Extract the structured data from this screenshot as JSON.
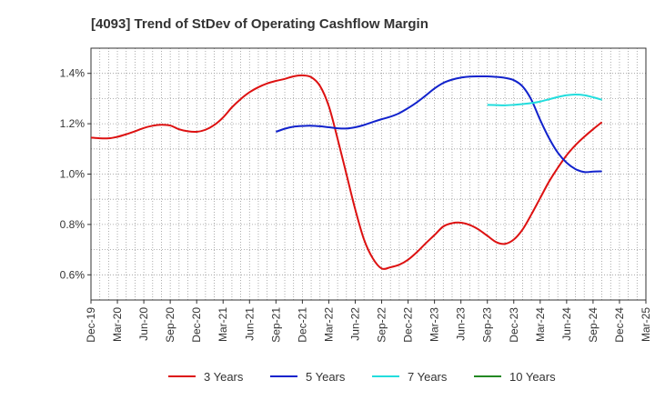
{
  "chart_data": {
    "type": "line",
    "title": "[4093]  Trend of StDev of Operating Cashflow Margin",
    "xlabel": "",
    "ylabel": "",
    "ylim": [
      0.5,
      1.5
    ],
    "yticks": [
      0.6,
      0.8,
      1.0,
      1.2,
      1.4
    ],
    "ytick_labels": [
      "0.6%",
      "0.8%",
      "1.0%",
      "1.2%",
      "1.4%"
    ],
    "x_tick_labels": [
      "Dec-19",
      "Mar-20",
      "Jun-20",
      "Sep-20",
      "Dec-20",
      "Mar-21",
      "Jun-21",
      "Sep-21",
      "Dec-21",
      "Mar-22",
      "Jun-22",
      "Sep-22",
      "Dec-22",
      "Mar-23",
      "Jun-23",
      "Sep-23",
      "Dec-23",
      "Mar-24",
      "Jun-24",
      "Sep-24",
      "Dec-24",
      "Mar-25"
    ],
    "grid": true,
    "legend_position": "bottom",
    "series": [
      {
        "name": "3 Years",
        "color": "#dd1111",
        "points": [
          [
            "Dec-19",
            1.145
          ],
          [
            "Jan-20",
            1.142
          ],
          [
            "Feb-20",
            1.142
          ],
          [
            "Mar-20",
            1.148
          ],
          [
            "Apr-20",
            1.158
          ],
          [
            "May-20",
            1.17
          ],
          [
            "Jun-20",
            1.183
          ],
          [
            "Jul-20",
            1.192
          ],
          [
            "Aug-20",
            1.196
          ],
          [
            "Sep-20",
            1.193
          ],
          [
            "Oct-20",
            1.178
          ],
          [
            "Nov-20",
            1.17
          ],
          [
            "Dec-20",
            1.168
          ],
          [
            "Jan-21",
            1.176
          ],
          [
            "Feb-21",
            1.195
          ],
          [
            "Mar-21",
            1.225
          ],
          [
            "Apr-21",
            1.265
          ],
          [
            "May-21",
            1.298
          ],
          [
            "Jun-21",
            1.325
          ],
          [
            "Jul-21",
            1.345
          ],
          [
            "Aug-21",
            1.36
          ],
          [
            "Sep-21",
            1.37
          ],
          [
            "Oct-21",
            1.378
          ],
          [
            "Nov-21",
            1.388
          ],
          [
            "Dec-21",
            1.392
          ],
          [
            "Jan-22",
            1.385
          ],
          [
            "Feb-22",
            1.35
          ],
          [
            "Mar-22",
            1.27
          ],
          [
            "Apr-22",
            1.14
          ],
          [
            "May-22",
            1.0
          ],
          [
            "Jun-22",
            0.86
          ],
          [
            "Jul-22",
            0.74
          ],
          [
            "Aug-22",
            0.665
          ],
          [
            "Sep-22",
            0.625
          ],
          [
            "Oct-22",
            0.63
          ],
          [
            "Nov-22",
            0.64
          ],
          [
            "Dec-22",
            0.66
          ],
          [
            "Jan-23",
            0.69
          ],
          [
            "Feb-23",
            0.725
          ],
          [
            "Mar-23",
            0.758
          ],
          [
            "Apr-23",
            0.792
          ],
          [
            "May-23",
            0.805
          ],
          [
            "Jun-23",
            0.807
          ],
          [
            "Jul-23",
            0.798
          ],
          [
            "Aug-23",
            0.78
          ],
          [
            "Sep-23",
            0.755
          ],
          [
            "Oct-23",
            0.73
          ],
          [
            "Nov-23",
            0.723
          ],
          [
            "Dec-23",
            0.74
          ],
          [
            "Jan-24",
            0.78
          ],
          [
            "Feb-24",
            0.84
          ],
          [
            "Mar-24",
            0.905
          ],
          [
            "Apr-24",
            0.97
          ],
          [
            "May-24",
            1.025
          ],
          [
            "Jun-24",
            1.075
          ],
          [
            "Jul-24",
            1.115
          ],
          [
            "Aug-24",
            1.148
          ],
          [
            "Sep-24",
            1.178
          ],
          [
            "Oct-24",
            1.206
          ]
        ]
      },
      {
        "name": "5 Years",
        "color": "#1122cc",
        "points": [
          [
            "Sep-21",
            1.168
          ],
          [
            "Oct-21",
            1.18
          ],
          [
            "Nov-21",
            1.188
          ],
          [
            "Dec-21",
            1.191
          ],
          [
            "Jan-22",
            1.192
          ],
          [
            "Feb-22",
            1.19
          ],
          [
            "Mar-22",
            1.186
          ],
          [
            "Apr-22",
            1.182
          ],
          [
            "May-22",
            1.181
          ],
          [
            "Jun-22",
            1.186
          ],
          [
            "Jul-22",
            1.195
          ],
          [
            "Aug-22",
            1.207
          ],
          [
            "Sep-22",
            1.218
          ],
          [
            "Oct-22",
            1.228
          ],
          [
            "Nov-22",
            1.242
          ],
          [
            "Dec-22",
            1.262
          ],
          [
            "Jan-23",
            1.285
          ],
          [
            "Feb-23",
            1.312
          ],
          [
            "Mar-23",
            1.34
          ],
          [
            "Apr-23",
            1.362
          ],
          [
            "May-23",
            1.375
          ],
          [
            "Jun-23",
            1.383
          ],
          [
            "Jul-23",
            1.387
          ],
          [
            "Aug-23",
            1.388
          ],
          [
            "Sep-23",
            1.388
          ],
          [
            "Oct-23",
            1.386
          ],
          [
            "Nov-23",
            1.382
          ],
          [
            "Dec-23",
            1.373
          ],
          [
            "Jan-24",
            1.348
          ],
          [
            "Feb-24",
            1.295
          ],
          [
            "Mar-24",
            1.215
          ],
          [
            "Apr-24",
            1.143
          ],
          [
            "May-24",
            1.085
          ],
          [
            "Jun-24",
            1.045
          ],
          [
            "Jul-24",
            1.02
          ],
          [
            "Aug-24",
            1.008
          ],
          [
            "Sep-24",
            1.01
          ],
          [
            "Oct-24",
            1.011
          ]
        ]
      },
      {
        "name": "7 Years",
        "color": "#22dddd",
        "points": [
          [
            "Sep-23",
            1.275
          ],
          [
            "Oct-23",
            1.274
          ],
          [
            "Nov-23",
            1.273
          ],
          [
            "Dec-23",
            1.275
          ],
          [
            "Jan-24",
            1.278
          ],
          [
            "Feb-24",
            1.282
          ],
          [
            "Mar-24",
            1.288
          ],
          [
            "Apr-24",
            1.297
          ],
          [
            "May-24",
            1.306
          ],
          [
            "Jun-24",
            1.313
          ],
          [
            "Jul-24",
            1.316
          ],
          [
            "Aug-24",
            1.313
          ],
          [
            "Sep-24",
            1.305
          ],
          [
            "Oct-24",
            1.295
          ]
        ]
      },
      {
        "name": "10 Years",
        "color": "#228822",
        "points": []
      }
    ]
  }
}
